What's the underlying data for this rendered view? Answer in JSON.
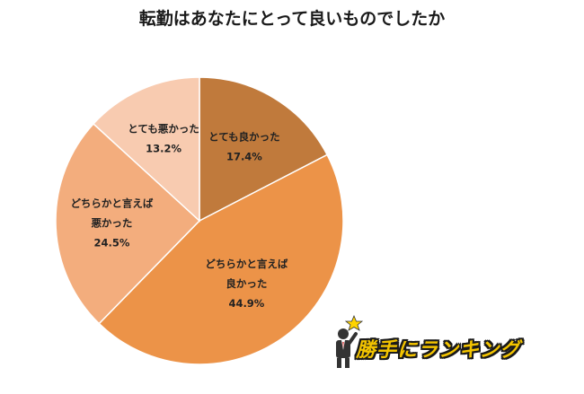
{
  "chart_data": {
    "type": "pie",
    "title": "転勤はあなたにとって良いものでしたか",
    "slices": [
      {
        "label_lines": [
          "とても良かった"
        ],
        "value": 17.4,
        "value_label": "17.4%",
        "color": "#c07a3c"
      },
      {
        "label_lines": [
          "どちらかと言えば",
          "良かった"
        ],
        "value": 44.9,
        "value_label": "44.9%",
        "color": "#ec9348"
      },
      {
        "label_lines": [
          "どちらかと言えば",
          "悪かった"
        ],
        "value": 24.5,
        "value_label": "24.5%",
        "color": "#f3ad7d"
      },
      {
        "label_lines": [
          "とても悪かった"
        ],
        "value": 13.2,
        "value_label": "13.2%",
        "color": "#f8cbb0"
      }
    ],
    "start": "12 o'clock",
    "direction": "clockwise"
  },
  "logo": {
    "text": "勝手にランキング",
    "icon": "businessman-with-star-icon"
  }
}
